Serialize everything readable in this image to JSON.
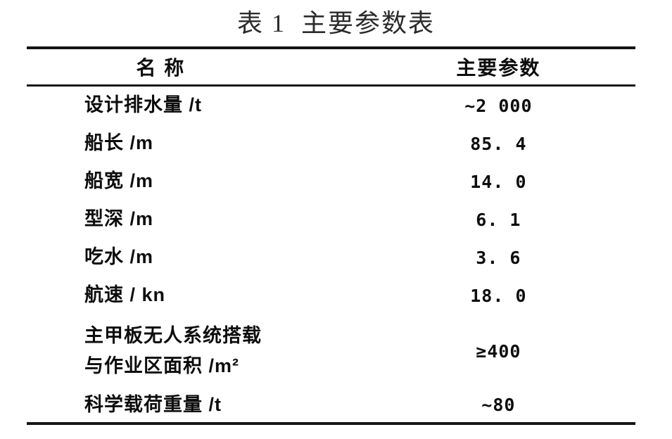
{
  "page": {
    "background": "#ffffff",
    "text_color": "#0d0d0d",
    "rule_color": "#151515"
  },
  "title": "表 1  主要参数表",
  "table": {
    "header": {
      "name": "名 称",
      "value": "主要参数"
    },
    "rows": [
      {
        "name": "设计排水量 /t",
        "value": "~2 000"
      },
      {
        "name": "船长 /m",
        "value": "85. 4"
      },
      {
        "name": "船宽 /m",
        "value": "14. 0"
      },
      {
        "name": "型深 /m",
        "value": "6. 1"
      },
      {
        "name": "吃水 /m",
        "value": "3. 6"
      },
      {
        "name": "航速 / kn",
        "value": "18. 0"
      },
      {
        "name": "主甲板无人系统搭载\n与作业区面积 /m²",
        "value": "≥400"
      },
      {
        "name": "科学载荷重量 /t",
        "value": "~80"
      }
    ]
  }
}
